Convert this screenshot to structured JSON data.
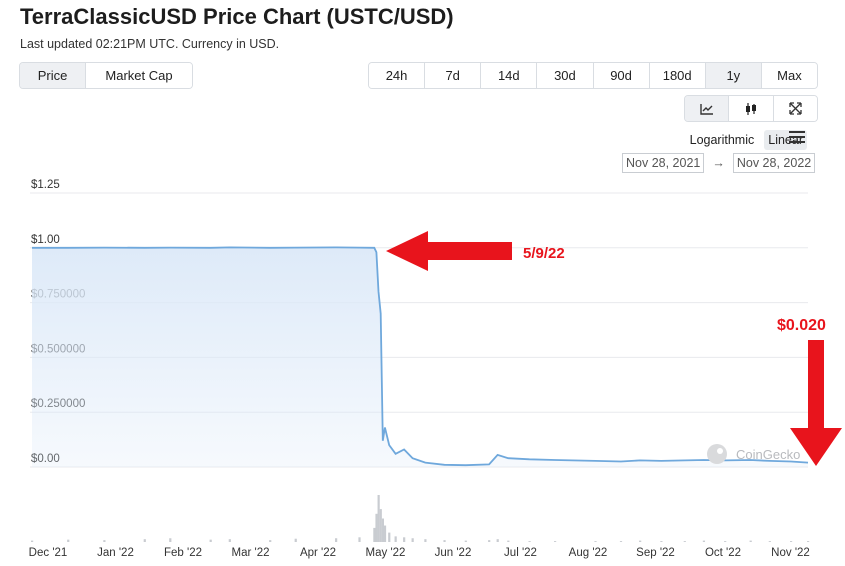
{
  "header": {
    "title": "TerraClassicUSD Price Chart (USTC/USD)",
    "subtitle": "Last updated 02:21PM UTC. Currency in USD."
  },
  "metric_tabs": [
    {
      "label": "Price",
      "active": true
    },
    {
      "label": "Market Cap",
      "active": false
    }
  ],
  "range_tabs": [
    {
      "label": "24h",
      "active": false
    },
    {
      "label": "7d",
      "active": false
    },
    {
      "label": "14d",
      "active": false
    },
    {
      "label": "30d",
      "active": false
    },
    {
      "label": "90d",
      "active": false
    },
    {
      "label": "180d",
      "active": false
    },
    {
      "label": "1y",
      "active": true
    },
    {
      "label": "Max",
      "active": false
    }
  ],
  "chart_type_tabs": [
    {
      "icon": "line-chart-icon",
      "active": true
    },
    {
      "icon": "candlestick-icon",
      "active": false
    },
    {
      "icon": "expand-icon",
      "active": false
    }
  ],
  "scale": {
    "logarithmic": "Logarithmic",
    "linear": "Linear",
    "active": "linear"
  },
  "date_range": {
    "from": "Nov 28, 2021",
    "to": "Nov 28, 2022",
    "arrow": "→"
  },
  "watermark": "CoinGecko",
  "annotations": {
    "event_label": "5/9/22",
    "price_label": "$0.020",
    "color": "#e8141c"
  },
  "colors": {
    "line": "#6fa8dc",
    "area_top": "#dce9f8",
    "volume": "#c9ccd1",
    "grid": "#e8eaed"
  },
  "chart_data": {
    "type": "area",
    "title": "TerraClassicUSD Price Chart (USTC/USD)",
    "y_ticks": [
      "$0.00",
      "$0.250000",
      "$0.500000",
      "$0.750000",
      "$1.00",
      "$1.25"
    ],
    "ylim": [
      0,
      1.25
    ],
    "x_ticks": [
      "Dec '21",
      "Jan '22",
      "Feb '22",
      "Mar '22",
      "Apr '22",
      "May '22",
      "Jun '22",
      "Jul '22",
      "Aug '22",
      "Sep '22",
      "Oct '22",
      "Nov '22"
    ],
    "x": [
      "2021-11-28",
      "2021-12-15",
      "2022-01-01",
      "2022-01-20",
      "2022-02-01",
      "2022-02-20",
      "2022-03-01",
      "2022-03-20",
      "2022-04-01",
      "2022-04-20",
      "2022-05-01",
      "2022-05-08",
      "2022-05-09",
      "2022-05-10",
      "2022-05-11",
      "2022-05-12",
      "2022-05-13",
      "2022-05-15",
      "2022-05-18",
      "2022-05-22",
      "2022-05-26",
      "2022-06-01",
      "2022-06-10",
      "2022-06-20",
      "2022-07-01",
      "2022-07-05",
      "2022-07-10",
      "2022-07-20",
      "2022-08-01",
      "2022-08-20",
      "2022-09-01",
      "2022-09-10",
      "2022-09-20",
      "2022-10-01",
      "2022-10-10",
      "2022-10-20",
      "2022-11-01",
      "2022-11-10",
      "2022-11-20",
      "2022-11-28"
    ],
    "series": [
      {
        "values": [
          1.0,
          1.0,
          1.001,
          1.0,
          1.001,
          1.0,
          1.002,
          1.0,
          1.001,
          1.002,
          1.001,
          1.0,
          0.98,
          0.8,
          0.7,
          0.12,
          0.18,
          0.1,
          0.06,
          0.08,
          0.04,
          0.02,
          0.01,
          0.008,
          0.012,
          0.055,
          0.04,
          0.035,
          0.032,
          0.028,
          0.025,
          0.03,
          0.028,
          0.03,
          0.032,
          0.03,
          0.032,
          0.028,
          0.025,
          0.02
        ]
      }
    ],
    "volume_relative": [
      0.03,
      0.05,
      0.04,
      0.06,
      0.08,
      0.05,
      0.06,
      0.04,
      0.07,
      0.08,
      0.1,
      0.3,
      0.6,
      1.0,
      0.7,
      0.5,
      0.35,
      0.2,
      0.12,
      0.1,
      0.08,
      0.06,
      0.04,
      0.03,
      0.04,
      0.06,
      0.03,
      0.02,
      0.02,
      0.02,
      0.02,
      0.03,
      0.02,
      0.02,
      0.03,
      0.02,
      0.03,
      0.02,
      0.02,
      0.02
    ],
    "grid": true
  }
}
